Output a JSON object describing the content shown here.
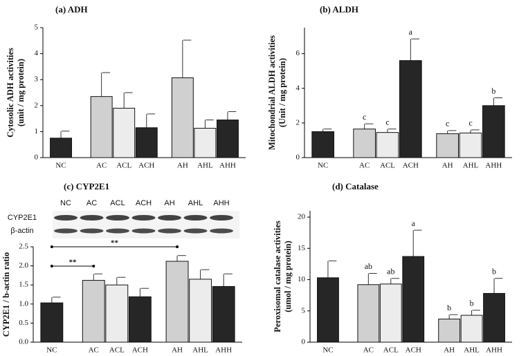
{
  "chart_data": [
    {
      "type": "bar",
      "title": "(a) ADH",
      "ylabel": [
        "Cytosolic ADH activities",
        "(unit / mg protein)"
      ],
      "categories": [
        "NC",
        "AC",
        "ACL",
        "ACH",
        "AH",
        "AHL",
        "AHH"
      ],
      "values": [
        0.75,
        2.35,
        1.9,
        1.15,
        3.07,
        1.13,
        1.45
      ],
      "errors": [
        0.27,
        0.92,
        0.6,
        0.53,
        1.45,
        0.32,
        0.32
      ],
      "colors": [
        "#262626",
        "#d0d0d0",
        "#ececec",
        "#262626",
        "#d0d0d0",
        "#ececec",
        "#262626"
      ],
      "ylim": [
        0,
        5
      ],
      "yticks": [
        0,
        1,
        2,
        3,
        4,
        5
      ]
    },
    {
      "type": "bar",
      "title": "(b) ALDH",
      "ylabel": [
        "Mitochondrial ALDH activities",
        "(Unit / mg protein)"
      ],
      "categories": [
        "NC",
        "AC",
        "ACL",
        "ACH",
        "AH",
        "AHL",
        "AHH"
      ],
      "values": [
        1.5,
        1.65,
        1.45,
        5.6,
        1.38,
        1.42,
        3.0
      ],
      "errors": [
        0.15,
        0.3,
        0.2,
        1.25,
        0.18,
        0.18,
        0.45
      ],
      "letters": [
        null,
        "c",
        "c",
        "a",
        "c",
        "c",
        "b"
      ],
      "colors": [
        "#262626",
        "#d0d0d0",
        "#ececec",
        "#262626",
        "#d0d0d0",
        "#ececec",
        "#262626"
      ],
      "ylim": [
        0,
        7.5
      ],
      "yticks": [
        0,
        2,
        4,
        6
      ]
    },
    {
      "type": "bar",
      "title": "(c) CYP2E1",
      "ylabel": [
        "CYP2E1 / b-actin ratio"
      ],
      "blot_lanes": [
        "NC",
        "AC",
        "ACL",
        "ACH",
        "AH",
        "AHL",
        "AHH"
      ],
      "blot_rows": [
        "CYP2E1",
        "β-actin"
      ],
      "annotations": [
        "**",
        "**"
      ],
      "categories": [
        "NC",
        "AC",
        "ACL",
        "ACH",
        "AH",
        "AHL",
        "AHH"
      ],
      "values": [
        1.03,
        1.62,
        1.5,
        1.19,
        2.12,
        1.65,
        1.46
      ],
      "errors": [
        0.15,
        0.17,
        0.2,
        0.22,
        0.15,
        0.25,
        0.33
      ],
      "colors": [
        "#262626",
        "#d0d0d0",
        "#ececec",
        "#262626",
        "#d0d0d0",
        "#ececec",
        "#262626"
      ],
      "ylim": [
        0,
        2.5
      ],
      "yticks": [
        {
          "value": 0,
          "label": "0.0"
        },
        {
          "value": 0.5,
          "label": "0.5"
        },
        {
          "value": 1,
          "label": "1.0"
        },
        {
          "value": 1.5,
          "label": "1.5"
        },
        {
          "value": 2,
          "label": "2.0"
        },
        {
          "value": 2.5,
          "label": "2.5"
        }
      ]
    },
    {
      "type": "bar",
      "title": "(d) Catalase",
      "ylabel": [
        "Peroxisomal catalase activities",
        "(umol / mg protein)"
      ],
      "categories": [
        "NC",
        "AC",
        "ACL",
        "ACH",
        "AH",
        "AHL",
        "AHH"
      ],
      "values": [
        10.3,
        9.2,
        9.3,
        13.7,
        3.7,
        4.3,
        7.8
      ],
      "errors": [
        2.7,
        1.8,
        0.9,
        4.2,
        0.7,
        0.8,
        2.4
      ],
      "letters": [
        null,
        "ab",
        "ab",
        "a",
        "b",
        "b",
        "b"
      ],
      "colors": [
        "#262626",
        "#d0d0d0",
        "#ececec",
        "#262626",
        "#d0d0d0",
        "#ececec",
        "#262626"
      ],
      "ylim": [
        0,
        21
      ],
      "yticks": [
        0,
        5,
        10,
        15,
        20
      ]
    }
  ]
}
